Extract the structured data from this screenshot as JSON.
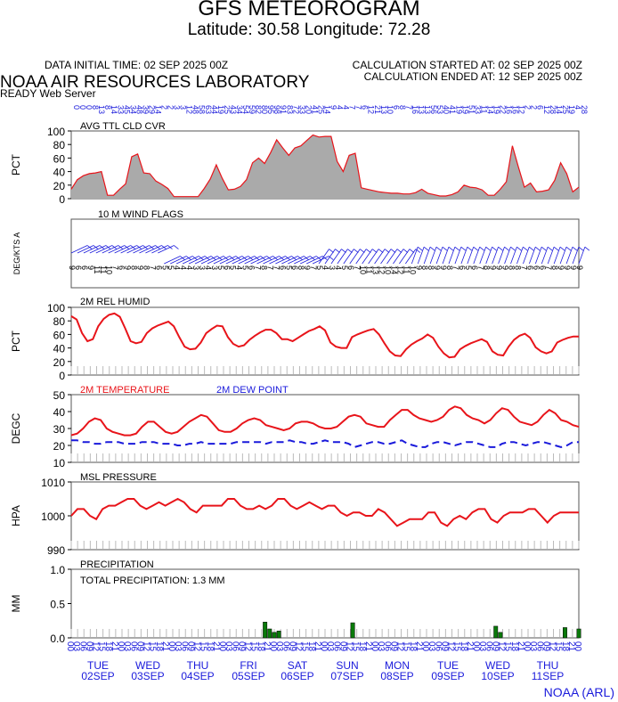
{
  "header": {
    "title": "GFS METEOROGRAM",
    "subtitle": "Latitude: 30.58 Longitude:  72.28",
    "init_time": "DATA INITIAL TIME: 02 SEP 2025 00Z",
    "calc_started": "CALCULATION STARTED AT: 02 SEP 2025 00Z",
    "calc_ended": "CALCULATION ENDED AT: 12 SEP 2025 00Z",
    "lab_name": "NOAA AIR RESOURCES LABORATORY",
    "server": "READY Web Server"
  },
  "credit": "NOAA (ARL)",
  "colors": {
    "red": "#e8141a",
    "blue": "#1a1adb",
    "gray_fill": "#aaaaaa",
    "green": "#0a7a0a"
  },
  "days": [
    {
      "dow": "TUE",
      "date": "02SEP"
    },
    {
      "dow": "WED",
      "date": "03SEP"
    },
    {
      "dow": "THU",
      "date": "04SEP"
    },
    {
      "dow": "FRI",
      "date": "05SEP"
    },
    {
      "dow": "SAT",
      "date": "06SEP"
    },
    {
      "dow": "SUN",
      "date": "07SEP"
    },
    {
      "dow": "MON",
      "date": "08SEP"
    },
    {
      "dow": "TUE",
      "date": "09SEP"
    },
    {
      "dow": "WED",
      "date": "10SEP"
    },
    {
      "dow": "THU",
      "date": "11SEP"
    }
  ],
  "chart_data": [
    {
      "type": "area",
      "title": "AVG TTL CLD CVR",
      "ylabel": "PCT",
      "ylim": [
        0,
        100
      ],
      "yticks": [
        "0",
        "20",
        "40",
        "60",
        "80",
        "100"
      ],
      "x_hours": "0 to 240 every 3",
      "top_labels": [
        "0",
        "0",
        "0",
        "8",
        "13",
        "8",
        "14",
        "33",
        "45",
        "34",
        "48",
        "39",
        "29",
        "14",
        "2",
        "2",
        "3",
        "3",
        "12",
        "48",
        "58",
        "63",
        "44",
        "19",
        "25",
        "43",
        "34",
        "54",
        "59",
        "82",
        "80",
        "95",
        "98",
        "91",
        "83",
        "72",
        "33",
        "20",
        "41",
        "25",
        "14",
        "9",
        "4",
        "4",
        "7",
        "7",
        "6",
        "12",
        "21",
        "13",
        "10",
        "6",
        "8",
        "7",
        "16",
        "13",
        "13",
        "56",
        "53",
        "40",
        "41",
        "19",
        "19",
        "51",
        "33",
        "11",
        "14",
        "19",
        "22",
        "16",
        "16",
        "12",
        "2",
        "2",
        "6",
        "12",
        "28",
        "14",
        "25",
        "19",
        "4",
        "28"
      ],
      "series": [
        {
          "values": [
            14,
            28,
            34,
            37,
            38,
            40,
            5,
            5,
            14,
            22,
            62,
            66,
            38,
            37,
            26,
            21,
            15,
            3,
            3,
            3,
            3,
            3,
            15,
            29,
            50,
            30,
            13,
            14,
            18,
            28,
            53,
            60,
            52,
            68,
            87,
            75,
            64,
            75,
            78,
            86,
            94,
            91,
            92,
            92,
            55,
            40,
            64,
            67,
            16,
            14,
            12,
            10,
            9,
            8,
            8,
            7,
            7,
            9,
            14,
            8,
            6,
            4,
            4,
            6,
            10,
            20,
            17,
            16,
            13,
            5,
            5,
            14,
            25,
            78,
            47,
            17,
            23,
            10,
            11,
            13,
            27,
            53,
            37,
            10,
            17
          ]
        }
      ]
    },
    {
      "type": "barbs",
      "title": "10 M  WIND FLAGS",
      "ylabel": "DEG/KTS  A",
      "speeds_kts": [
        "9",
        "6",
        "6",
        "9",
        "11",
        "11",
        "10",
        "7",
        "6",
        "9",
        "8",
        "9",
        "8",
        "7",
        "6",
        "5",
        "5",
        "4",
        "4",
        "4",
        "3",
        "3",
        "4",
        "3",
        "5",
        "6",
        "5",
        "4",
        "5",
        "6",
        "7",
        "8",
        "7",
        "7",
        "6",
        "5",
        "6",
        "8",
        "9",
        "7",
        "5",
        "4",
        "3",
        "4",
        "5",
        "6",
        "7",
        "10",
        "11",
        "13",
        "12",
        "10",
        "14",
        "12",
        "11",
        "10",
        "9",
        "8",
        "8",
        "9",
        "9",
        "8",
        "7",
        "6",
        "5",
        "6",
        "7",
        "8",
        "9",
        "9",
        "9",
        "8",
        "8",
        "7",
        "6",
        "6",
        "6",
        "7",
        "8",
        "9",
        "9",
        "9",
        "9"
      ]
    },
    {
      "type": "line",
      "title": "2M REL HUMID",
      "ylabel": "PCT",
      "ylim": [
        0,
        100
      ],
      "yticks": [
        "0",
        "20",
        "40",
        "60",
        "80",
        "100"
      ],
      "series": [
        {
          "name": "2M REL HUMID",
          "values": [
            87,
            82,
            62,
            50,
            53,
            72,
            83,
            89,
            91,
            86,
            69,
            50,
            47,
            49,
            62,
            69,
            73,
            76,
            79,
            72,
            56,
            42,
            38,
            39,
            48,
            62,
            68,
            73,
            72,
            56,
            46,
            42,
            44,
            52,
            58,
            63,
            67,
            67,
            62,
            53,
            53,
            50,
            55,
            60,
            65,
            68,
            72,
            66,
            48,
            42,
            40,
            40,
            56,
            60,
            63,
            66,
            68,
            60,
            47,
            35,
            29,
            28,
            38,
            45,
            50,
            54,
            60,
            55,
            42,
            32,
            26,
            27,
            38,
            43,
            47,
            50,
            53,
            49,
            35,
            30,
            29,
            42,
            52,
            58,
            61,
            55,
            41,
            35,
            32,
            35,
            48,
            52,
            55,
            57,
            57
          ]
        }
      ]
    },
    {
      "type": "line",
      "title": "",
      "ylabel": "DEGC",
      "ylim": [
        10,
        50
      ],
      "yticks": [
        "10",
        "20",
        "30",
        "40",
        "50"
      ],
      "series": [
        {
          "name": "2M TEMPERATURE",
          "values": [
            26,
            27,
            30,
            34,
            36,
            35,
            30,
            28,
            27,
            26,
            26,
            27,
            31,
            34,
            34,
            31,
            28,
            27,
            28,
            31,
            34,
            36,
            38,
            37,
            33,
            29,
            28,
            28,
            30,
            33,
            35,
            36,
            35,
            32,
            31,
            30,
            29,
            30,
            33,
            34,
            34,
            33,
            31,
            30,
            30,
            31,
            34,
            37,
            38,
            37,
            33,
            32,
            31,
            31,
            35,
            38,
            41,
            41,
            38,
            36,
            35,
            34,
            35,
            37,
            41,
            43,
            42,
            38,
            36,
            35,
            33,
            35,
            39,
            42,
            41,
            37,
            34,
            33,
            32,
            34,
            38,
            41,
            39,
            35,
            34,
            32,
            31
          ]
        },
        {
          "name": "2M  DEW POINT",
          "values": [
            23,
            23,
            22,
            22,
            21,
            21,
            22,
            22,
            22,
            21,
            21,
            21,
            22,
            22,
            22,
            21,
            21,
            21,
            20,
            20,
            21,
            21,
            22,
            21,
            21,
            21,
            21,
            21,
            22,
            22,
            22,
            22,
            22,
            21,
            22,
            22,
            22,
            23,
            22,
            22,
            21,
            21,
            22,
            23,
            22,
            22,
            22,
            21,
            19,
            20,
            21,
            22,
            22,
            21,
            21,
            22,
            23,
            21,
            20,
            19,
            19,
            21,
            22,
            22,
            21,
            20,
            21,
            22,
            22,
            21,
            20,
            19,
            19,
            21,
            22,
            22,
            21,
            20,
            21,
            22,
            22,
            21,
            20,
            19,
            20,
            22,
            22
          ]
        }
      ]
    },
    {
      "type": "line",
      "title": "MSL PRESSURE",
      "ylabel": "HPA",
      "ylim": [
        990,
        1010
      ],
      "yticks": [
        "990",
        "1000",
        "1010"
      ],
      "series": [
        {
          "name": "MSL PRESSURE",
          "values": [
            1000,
            1002,
            1002,
            1000,
            999,
            1002,
            1003,
            1003,
            1004,
            1005,
            1005,
            1003,
            1002,
            1003,
            1004,
            1003,
            1004,
            1005,
            1004,
            1002,
            1001,
            1003,
            1003,
            1003,
            1003,
            1005,
            1005,
            1003,
            1002,
            1002,
            1003,
            1002,
            1003,
            1005,
            1005,
            1003,
            1002,
            1003,
            1004,
            1003,
            1002,
            1003,
            1003,
            1001,
            1000,
            1001,
            1001,
            1000,
            1000,
            1002,
            1001,
            999,
            997,
            998,
            999,
            999,
            999,
            1001,
            1001,
            998,
            997,
            999,
            1000,
            999,
            1001,
            1002,
            1002,
            999,
            998,
            1000,
            1001,
            1001,
            1001,
            1002,
            1002,
            1000,
            998,
            1000,
            1001,
            1001,
            1001,
            1001
          ]
        }
      ]
    },
    {
      "type": "bar",
      "title": "PRECIPITATION",
      "annotation": "TOTAL PRECIPITATION:   1.3 MM",
      "ylabel": "MM",
      "ylim": [
        0,
        1.0
      ],
      "yticks": [
        "0.0",
        "0.5",
        "1.0"
      ],
      "series": [
        {
          "name": "PRECIPITATION",
          "values": [
            0,
            0,
            0,
            0,
            0,
            0,
            0,
            0,
            0,
            0,
            0,
            0,
            0,
            0,
            0,
            0,
            0,
            0,
            0,
            0,
            0,
            0,
            0,
            0,
            0,
            0,
            0,
            0,
            0,
            0,
            0,
            0,
            0,
            0,
            0,
            0,
            0,
            0,
            0,
            0,
            0,
            0,
            0.23,
            0.13,
            0.08,
            0.1,
            0,
            0,
            0,
            0,
            0,
            0,
            0,
            0,
            0,
            0,
            0,
            0,
            0,
            0,
            0,
            0.22,
            0,
            0,
            0,
            0,
            0,
            0,
            0,
            0,
            0,
            0,
            0,
            0,
            0,
            0,
            0,
            0,
            0,
            0,
            0,
            0,
            0,
            0,
            0,
            0,
            0,
            0,
            0,
            0,
            0,
            0,
            0.17,
            0.08,
            0,
            0,
            0,
            0,
            0,
            0,
            0,
            0,
            0,
            0,
            0,
            0,
            0,
            0.15,
            0,
            0,
            0.13
          ]
        }
      ]
    }
  ],
  "x_axis": {
    "hours": [
      "0",
      "6",
      "12",
      "18",
      "24",
      "30",
      "36",
      "42",
      "48",
      "54",
      "60",
      "66",
      "72",
      "78",
      "84",
      "90",
      "96",
      "102",
      "108",
      "114",
      "120",
      "126",
      "132",
      "138",
      "144",
      "150",
      "156",
      "162",
      "168",
      "174",
      "180",
      "186",
      "192",
      "198",
      "204",
      "210",
      "216",
      "222",
      "228",
      "234",
      "240"
    ],
    "labels": [
      "00",
      "03",
      "06",
      "09",
      "12",
      "15",
      "18",
      "21",
      "00",
      "03",
      "06",
      "09",
      "12",
      "15",
      "18",
      "21",
      "00",
      "03",
      "06",
      "09",
      "12",
      "15",
      "18",
      "21",
      "00",
      "03",
      "06",
      "09",
      "12",
      "15",
      "18",
      "21",
      "00",
      "03",
      "06",
      "09",
      "12",
      "15",
      "18",
      "21",
      "00",
      "03",
      "06",
      "09",
      "12",
      "15",
      "18",
      "21",
      "00",
      "03",
      "06",
      "09",
      "12",
      "15",
      "18",
      "21",
      "00",
      "03",
      "06",
      "09",
      "12",
      "15",
      "18",
      "21",
      "00",
      "03",
      "06",
      "09",
      "12",
      "15",
      "18",
      "21",
      "00",
      "03",
      "06",
      "09",
      "12",
      "15",
      "18",
      "21",
      "00"
    ]
  }
}
